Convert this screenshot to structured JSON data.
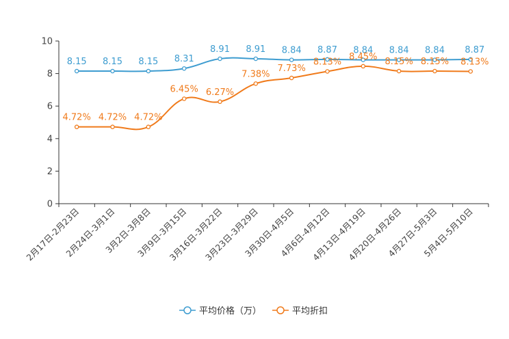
{
  "chart_data": {
    "type": "line",
    "categories": [
      "2月17日-2月23日",
      "2月24日-3月1日",
      "3月2日-3月8日",
      "3月9日-3月15日",
      "3月16日-3月22日",
      "3月23日-3月29日",
      "3月30日-4月5日",
      "4月6日-4月12日",
      "4月13日-4月19日",
      "4月20日-4月26日",
      "4月27日-5月3日",
      "5月4日-5月10日"
    ],
    "ylim": [
      0,
      10
    ],
    "yticks": [
      "0",
      "2",
      "4",
      "6",
      "8",
      "10"
    ],
    "series": [
      {
        "name": "平均价格（万）",
        "color": "#3d9cd0",
        "values": [
          8.15,
          8.15,
          8.15,
          8.31,
          8.91,
          8.91,
          8.84,
          8.87,
          8.84,
          8.84,
          8.84,
          8.87
        ],
        "labels": [
          "8.15",
          "8.15",
          "8.15",
          "8.31",
          "8.91",
          "8.91",
          "8.84",
          "8.87",
          "8.84",
          "8.84",
          "8.84",
          "8.87"
        ]
      },
      {
        "name": "平均折扣",
        "color": "#f07a1a",
        "values": [
          4.72,
          4.72,
          4.72,
          6.45,
          6.27,
          7.38,
          7.73,
          8.13,
          8.45,
          8.15,
          8.15,
          8.13
        ],
        "labels": [
          "4.72%",
          "4.72%",
          "4.72%",
          "6.45%",
          "6.27%",
          "7.38%",
          "7.73%",
          "8.13%",
          "8.45%",
          "8.15%",
          "8.15%",
          "8.13%"
        ]
      }
    ],
    "smooth": true,
    "legend_position": "bottom"
  }
}
